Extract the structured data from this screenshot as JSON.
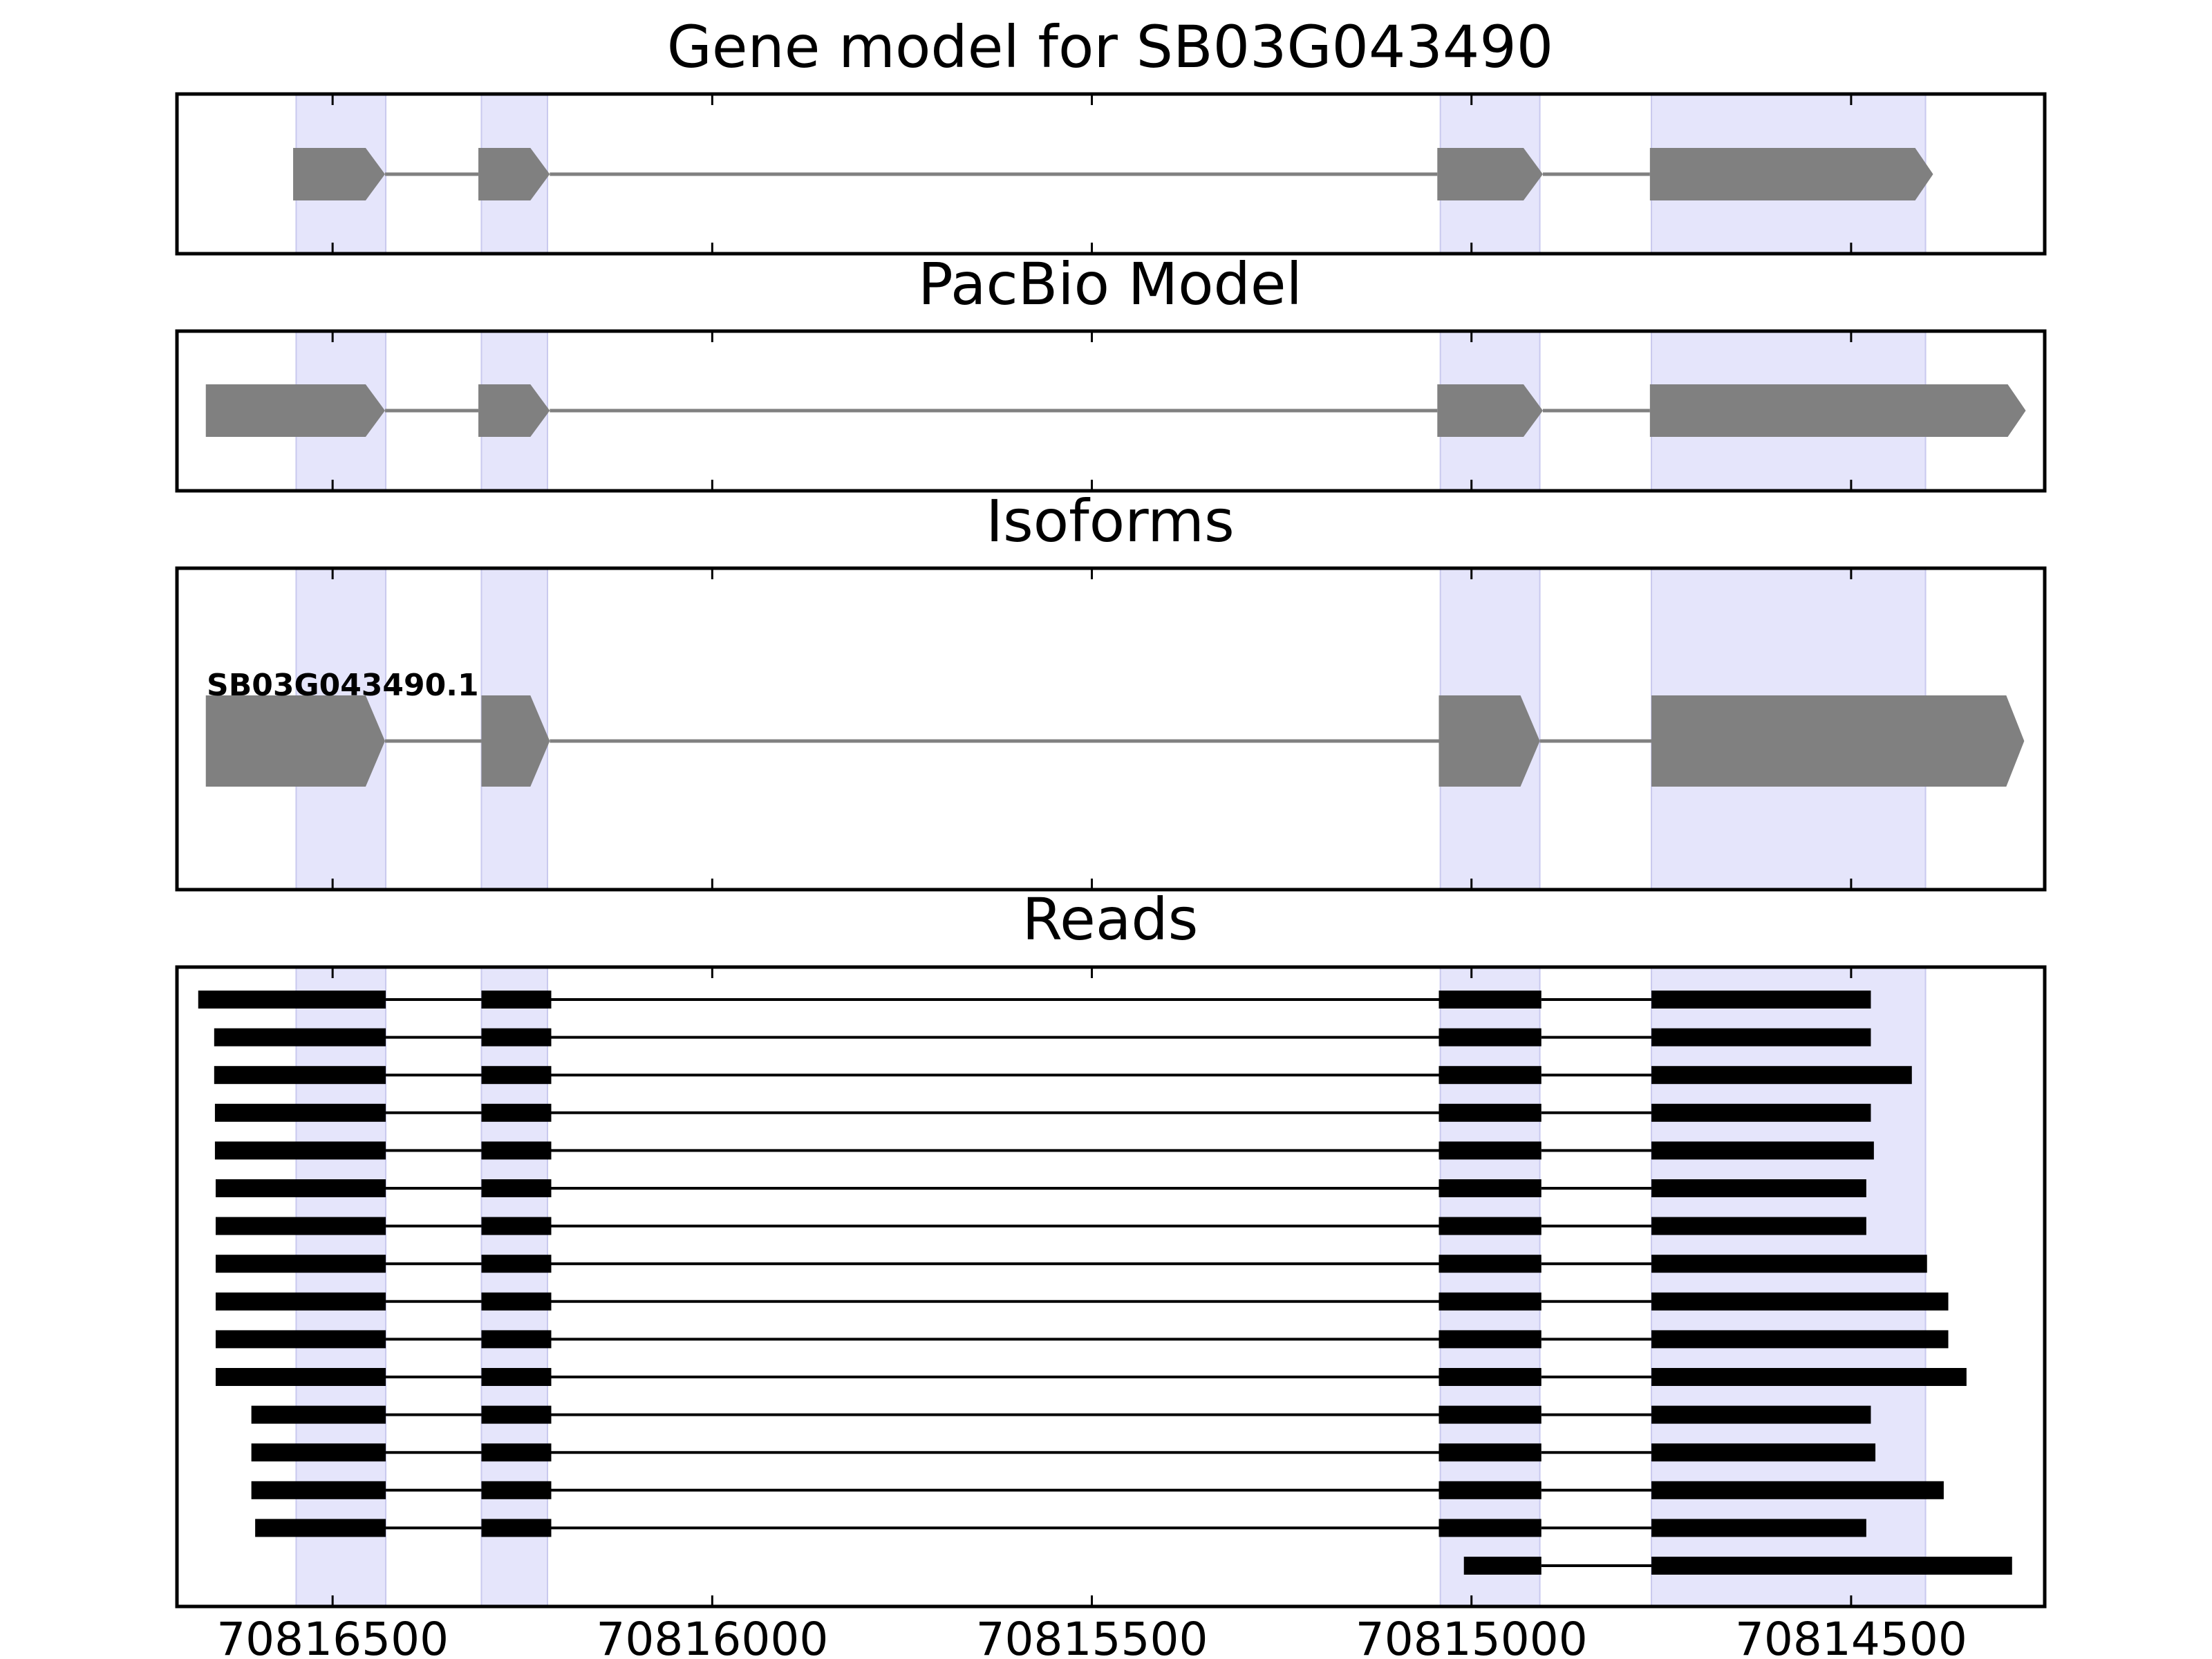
{
  "panels": {
    "gene": {
      "title": "Gene model for SB03G043490"
    },
    "pacbio": {
      "title": "PacBio Model"
    },
    "isoforms": {
      "title": "Isoforms",
      "label": "SB03G043490.1"
    },
    "reads": {
      "title": "Reads"
    }
  },
  "x_axis": {
    "reversed": true,
    "xlim": [
      70816705,
      70814245
    ],
    "ticks": [
      70816500,
      70816000,
      70815500,
      70815000,
      70814500
    ],
    "tick_labels": [
      "70816500",
      "70816000",
      "70815500",
      "70815000",
      "70814500"
    ]
  },
  "chart_data": {
    "type": "gene_track",
    "strand": "minus",
    "highlight_color": "#e5e5fb",
    "model_color": "#808080",
    "read_color": "#000000",
    "highlight_regions": [
      [
        70816548,
        70816430
      ],
      [
        70816304,
        70816217
      ],
      [
        70815041,
        70814910
      ],
      [
        70814763,
        70814402
      ]
    ],
    "gene_model": {
      "exons": [
        [
          70816552,
          70816431
        ],
        [
          70816308,
          70816214
        ],
        [
          70815045,
          70814906
        ],
        [
          70814765,
          70814392
        ]
      ]
    },
    "pacbio_model": {
      "exons": [
        [
          70816667,
          70816431
        ],
        [
          70816308,
          70816214
        ],
        [
          70815045,
          70814906
        ],
        [
          70814765,
          70814270
        ]
      ]
    },
    "isoforms": [
      {
        "name": "SB03G043490.1",
        "exons": [
          [
            70816667,
            70816431
          ],
          [
            70816304,
            70816214
          ],
          [
            70815043,
            70814910
          ],
          [
            70814763,
            70814272
          ]
        ]
      }
    ],
    "reads": [
      {
        "exons": [
          [
            70816677,
            70816430
          ],
          [
            70816304,
            70816212
          ],
          [
            70815043,
            70814908
          ],
          [
            70814763,
            70814474
          ]
        ]
      },
      {
        "exons": [
          [
            70816656,
            70816430
          ],
          [
            70816304,
            70816212
          ],
          [
            70815043,
            70814908
          ],
          [
            70814763,
            70814474
          ]
        ]
      },
      {
        "exons": [
          [
            70816656,
            70816430
          ],
          [
            70816304,
            70816212
          ],
          [
            70815043,
            70814908
          ],
          [
            70814763,
            70814420
          ]
        ]
      },
      {
        "exons": [
          [
            70816655,
            70816430
          ],
          [
            70816304,
            70816212
          ],
          [
            70815043,
            70814908
          ],
          [
            70814763,
            70814474
          ]
        ]
      },
      {
        "exons": [
          [
            70816655,
            70816430
          ],
          [
            70816304,
            70816212
          ],
          [
            70815043,
            70814908
          ],
          [
            70814763,
            70814470
          ]
        ]
      },
      {
        "exons": [
          [
            70816654,
            70816430
          ],
          [
            70816304,
            70816212
          ],
          [
            70815043,
            70814908
          ],
          [
            70814763,
            70814480
          ]
        ]
      },
      {
        "exons": [
          [
            70816654,
            70816430
          ],
          [
            70816304,
            70816212
          ],
          [
            70815043,
            70814908
          ],
          [
            70814763,
            70814480
          ]
        ]
      },
      {
        "exons": [
          [
            70816654,
            70816430
          ],
          [
            70816304,
            70816212
          ],
          [
            70815043,
            70814908
          ],
          [
            70814763,
            70814400
          ]
        ]
      },
      {
        "exons": [
          [
            70816654,
            70816430
          ],
          [
            70816304,
            70816212
          ],
          [
            70815043,
            70814908
          ],
          [
            70814763,
            70814372
          ]
        ]
      },
      {
        "exons": [
          [
            70816654,
            70816430
          ],
          [
            70816304,
            70816212
          ],
          [
            70815043,
            70814908
          ],
          [
            70814763,
            70814372
          ]
        ]
      },
      {
        "exons": [
          [
            70816654,
            70816430
          ],
          [
            70816304,
            70816212
          ],
          [
            70815043,
            70814908
          ],
          [
            70814763,
            70814348
          ]
        ]
      },
      {
        "exons": [
          [
            70816607,
            70816430
          ],
          [
            70816304,
            70816212
          ],
          [
            70815043,
            70814908
          ],
          [
            70814763,
            70814474
          ]
        ]
      },
      {
        "exons": [
          [
            70816607,
            70816430
          ],
          [
            70816304,
            70816212
          ],
          [
            70815043,
            70814908
          ],
          [
            70814763,
            70814468
          ]
        ]
      },
      {
        "exons": [
          [
            70816607,
            70816430
          ],
          [
            70816304,
            70816212
          ],
          [
            70815043,
            70814908
          ],
          [
            70814763,
            70814378
          ]
        ]
      },
      {
        "exons": [
          [
            70816602,
            70816430
          ],
          [
            70816304,
            70816212
          ],
          [
            70815043,
            70814908
          ],
          [
            70814763,
            70814480
          ]
        ]
      },
      {
        "exons": [
          [
            70815010,
            70814908
          ],
          [
            70814763,
            70814288
          ]
        ]
      }
    ]
  }
}
